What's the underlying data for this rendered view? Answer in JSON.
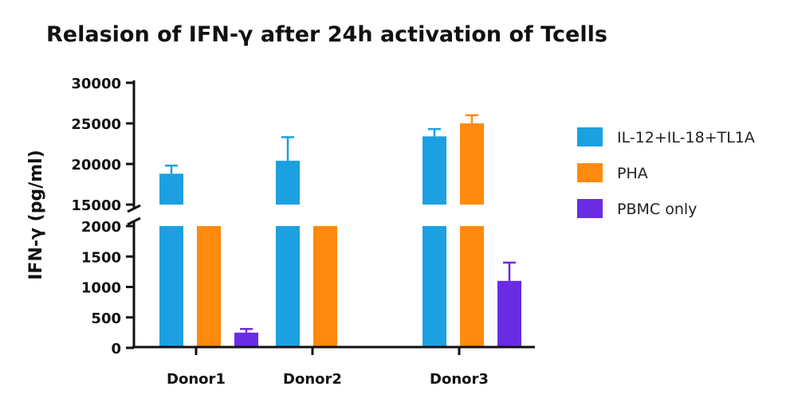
{
  "chart_data": {
    "type": "bar",
    "title": "Relasion of IFN-γ after 24h activation of Tcells",
    "xlabel": "",
    "ylabel": "IFN-γ (pg/ml)",
    "categories": [
      "Donor1",
      "Donor2",
      "Donor3"
    ],
    "axis_break": {
      "lower_range": [
        0,
        2000
      ],
      "upper_range": [
        15000,
        30000
      ]
    },
    "lower_ticks": [
      0,
      500,
      1000,
      1500,
      2000
    ],
    "upper_ticks": [
      15000,
      20000,
      25000,
      30000
    ],
    "lower_tick_labels": [
      "0",
      "500",
      "1000",
      "1500",
      "2000"
    ],
    "upper_tick_labels": [
      "15000",
      "20000",
      "25000",
      "30000"
    ],
    "legend_position": "right",
    "series": [
      {
        "name": "IL-12+IL-18+TL1A",
        "color": "#1BA1E2",
        "values": [
          18800,
          20400,
          23400
        ],
        "errors": [
          1000,
          2900,
          900
        ]
      },
      {
        "name": "PHA",
        "color": "#FF8A0D",
        "values": [
          null,
          null,
          25000
        ],
        "errors": [
          null,
          null,
          1000
        ],
        "note": "Donor1 and Donor2 bars extend across the axis break with no value shown in upper segment"
      },
      {
        "name": "PBMC only",
        "color": "#6A2BE5",
        "values": [
          250,
          null,
          1100
        ],
        "errors": [
          60,
          null,
          300
        ]
      }
    ]
  }
}
